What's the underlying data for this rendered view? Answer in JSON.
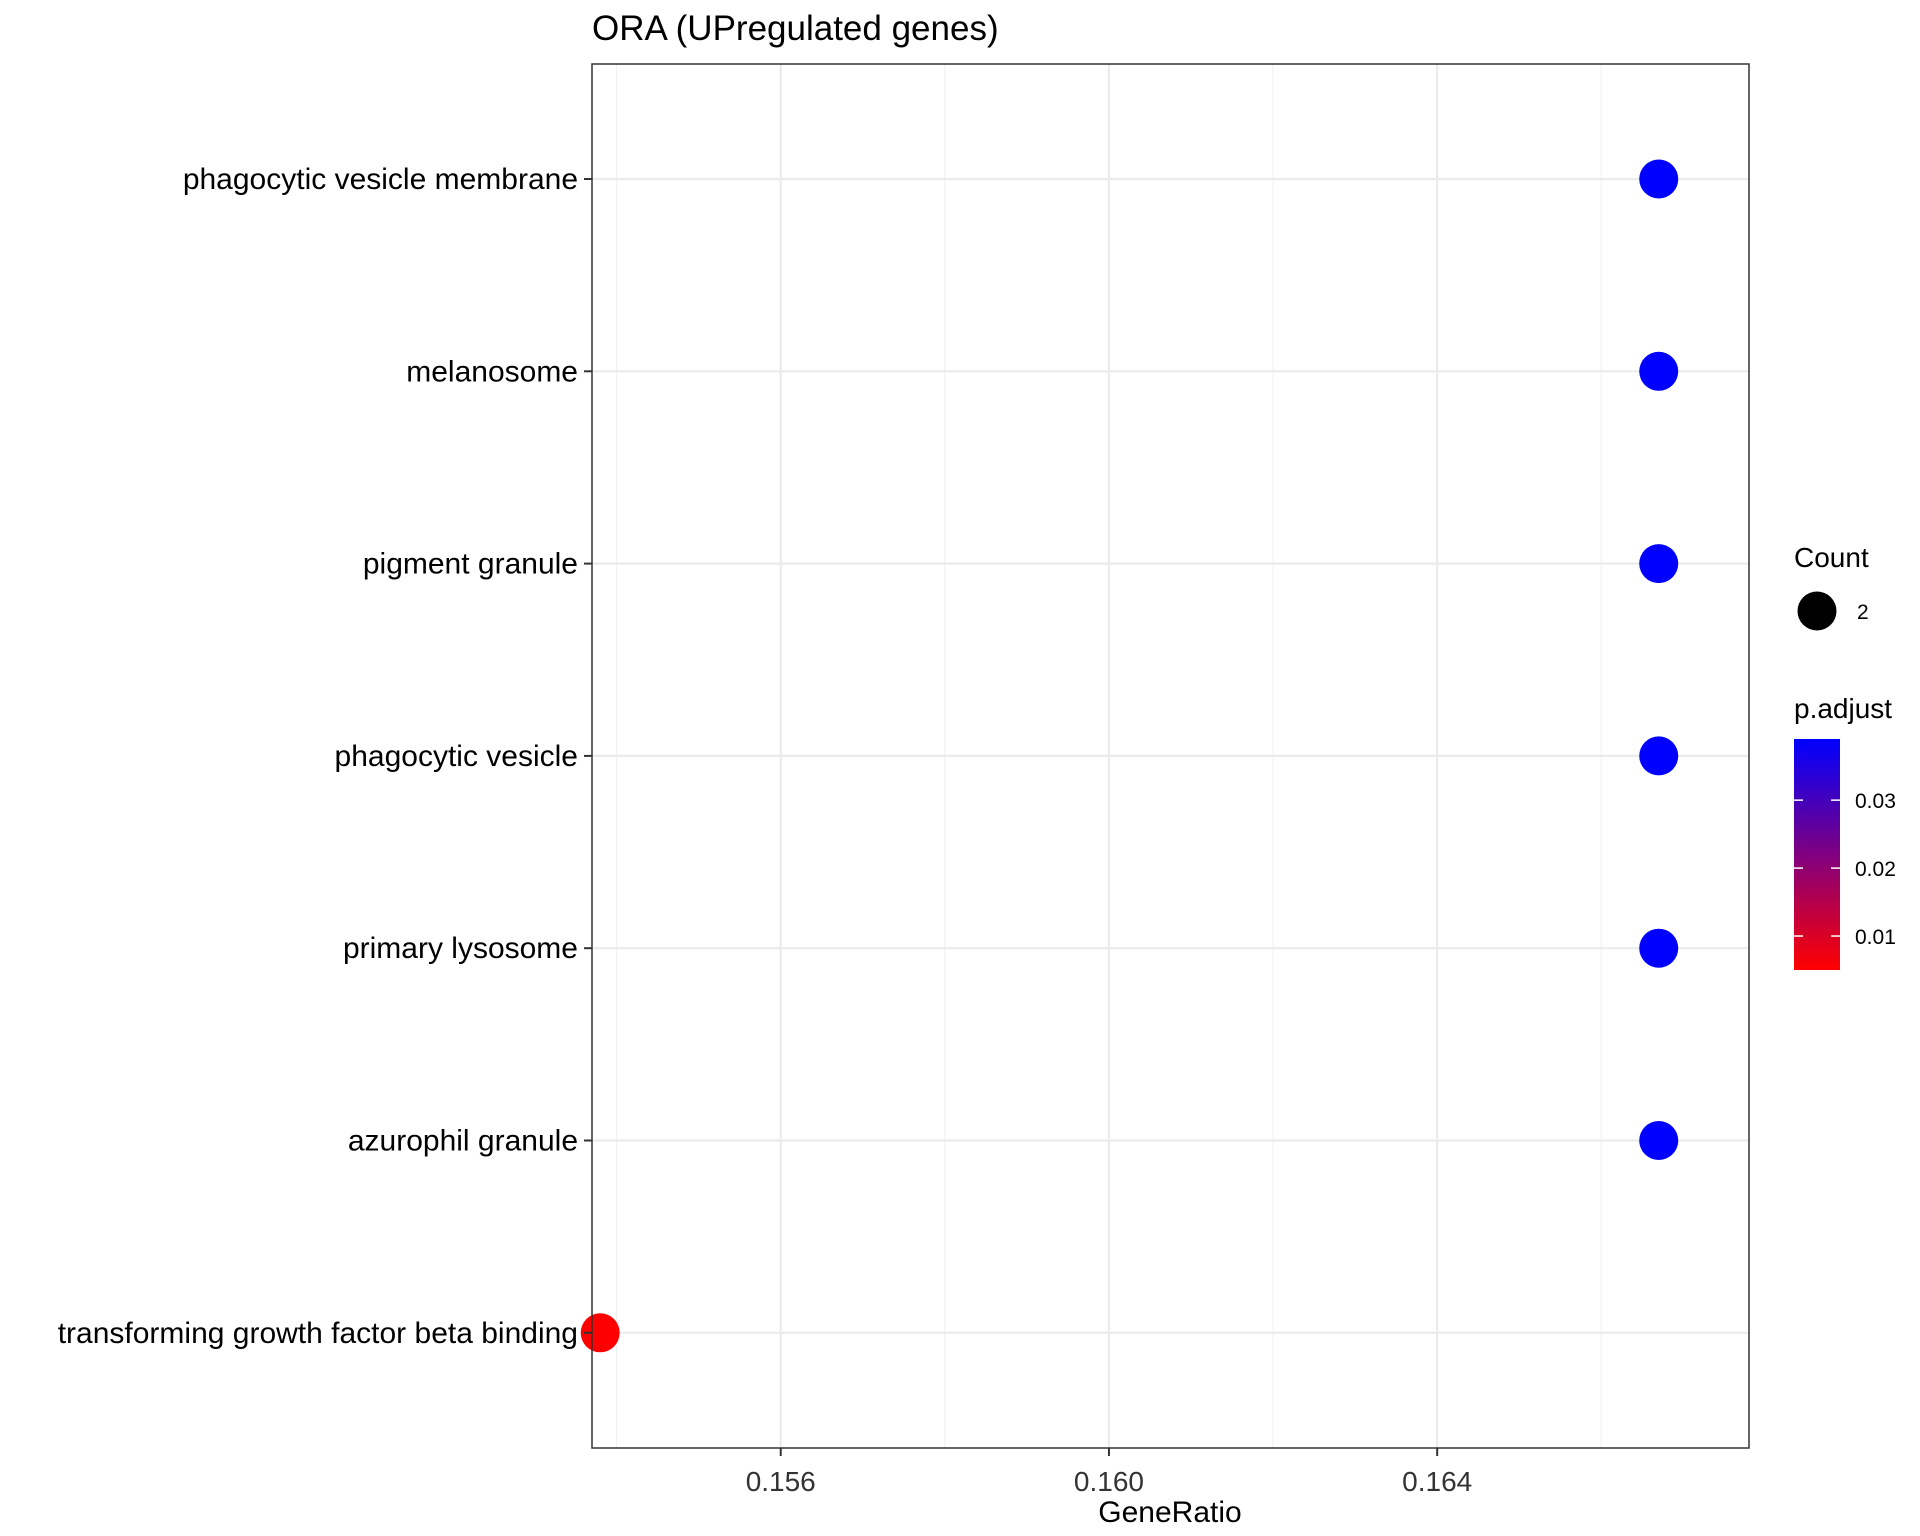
{
  "chart_data": {
    "type": "scatter",
    "title": "ORA (UPregulated genes)",
    "xlabel": "GeneRatio",
    "ylabel": "",
    "xlim": [
      0.1537,
      0.1678
    ],
    "x_ticks": [
      0.156,
      0.16,
      0.164
    ],
    "x_tick_labels": [
      "0.156",
      "0.160",
      "0.164"
    ],
    "categories": [
      "phagocytic vesicle membrane",
      "melanosome",
      "pigment granule",
      "phagocytic vesicle",
      "primary lysosome",
      "azurophil granule",
      "transforming growth factor beta binding"
    ],
    "points": [
      {
        "term": "phagocytic vesicle membrane",
        "gene_ratio": 0.1667,
        "count": 2,
        "p_adjust": 0.039
      },
      {
        "term": "melanosome",
        "gene_ratio": 0.1667,
        "count": 2,
        "p_adjust": 0.039
      },
      {
        "term": "pigment granule",
        "gene_ratio": 0.1667,
        "count": 2,
        "p_adjust": 0.039
      },
      {
        "term": "phagocytic vesicle",
        "gene_ratio": 0.1667,
        "count": 2,
        "p_adjust": 0.039
      },
      {
        "term": "primary lysosome",
        "gene_ratio": 0.1667,
        "count": 2,
        "p_adjust": 0.039
      },
      {
        "term": "azurophil granule",
        "gene_ratio": 0.1667,
        "count": 2,
        "p_adjust": 0.039
      },
      {
        "term": "transforming growth factor beta binding",
        "gene_ratio": 0.1538,
        "count": 2,
        "p_adjust": 0.005
      }
    ],
    "legend": {
      "size_title": "Count",
      "size_entries": [
        {
          "value": 2,
          "label": "2"
        }
      ],
      "color_title": "p.adjust",
      "color_range": [
        0.005,
        0.039
      ],
      "color_ticks": [
        0.01,
        0.02,
        0.03
      ],
      "color_tick_labels": [
        "0.01",
        "0.02",
        "0.03"
      ],
      "color_low": "#ff0000",
      "color_high": "#0000ff",
      "placement": "right"
    },
    "grid": true
  }
}
